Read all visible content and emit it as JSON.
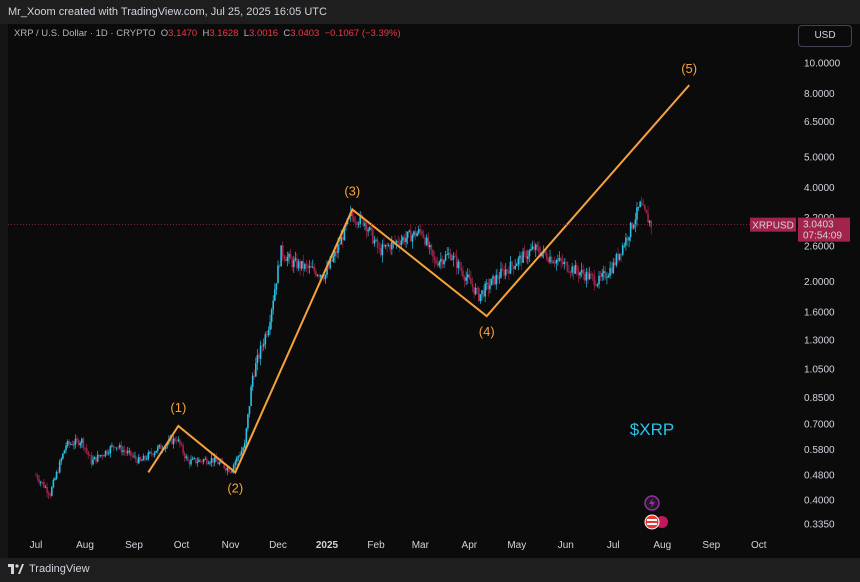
{
  "header": {
    "credit": "Mr_Xoom created with TradingView.com, Jul 25, 2025 16:05 UTC"
  },
  "symbol_line": {
    "title": "XRP / U.S. Dollar · 1D · CRYPTO",
    "open_label": "O",
    "open_value": "3.1470",
    "high_label": "H",
    "high_value": "3.1628",
    "low_label": "L",
    "low_value": "3.0016",
    "close_label": "C",
    "close_value": "3.0403",
    "change": "−0.1067 (−3.39%)"
  },
  "currency_button": "USD",
  "footer": {
    "brand": "TradingView"
  },
  "price_tag": {
    "symbol": "XRPUSD",
    "price": "3.0403",
    "countdown": "07:54:09"
  },
  "colors": {
    "up": "#2ac3e8",
    "down": "#a3244a",
    "wave": "#f7a23b",
    "tag_bg": "#a3244a",
    "background": "#0b0b0b",
    "symbol_text": "#2ac3e8"
  },
  "chart_data": {
    "type": "candlestick",
    "log_scale": true,
    "y_ticks": [
      "10.0000",
      "8.0000",
      "6.5000",
      "5.0000",
      "4.0000",
      "3.2000",
      "2.6000",
      "2.0000",
      "1.6000",
      "1.3000",
      "1.0500",
      "0.8500",
      "0.7000",
      "0.5800",
      "0.4800",
      "0.4000",
      "0.3350"
    ],
    "x_ticks": [
      "Jul",
      "Aug",
      "Sep",
      "Oct",
      "Nov",
      "Dec",
      "2025",
      "Feb",
      "Mar",
      "Apr",
      "May",
      "Jun",
      "Jul",
      "Aug",
      "Sep",
      "Oct"
    ],
    "price_path": [
      [
        "2024-07-01",
        0.48
      ],
      [
        "2024-07-10",
        0.42
      ],
      [
        "2024-07-20",
        0.6
      ],
      [
        "2024-07-30",
        0.62
      ],
      [
        "2024-08-05",
        0.53
      ],
      [
        "2024-08-20",
        0.6
      ],
      [
        "2024-09-05",
        0.53
      ],
      [
        "2024-09-15",
        0.58
      ],
      [
        "2024-09-28",
        0.63
      ],
      [
        "2024-10-05",
        0.53
      ],
      [
        "2024-10-20",
        0.54
      ],
      [
        "2024-11-01",
        0.5
      ],
      [
        "2024-11-10",
        0.6
      ],
      [
        "2024-11-15",
        1.0
      ],
      [
        "2024-11-25",
        1.45
      ],
      [
        "2024-12-03",
        2.5
      ],
      [
        "2024-12-10",
        2.3
      ],
      [
        "2024-12-20",
        2.2
      ],
      [
        "2024-12-31",
        2.1
      ],
      [
        "2025-01-07",
        2.5
      ],
      [
        "2025-01-16",
        3.25
      ],
      [
        "2025-01-25",
        3.1
      ],
      [
        "2025-02-03",
        2.5
      ],
      [
        "2025-02-15",
        2.7
      ],
      [
        "2025-03-02",
        2.9
      ],
      [
        "2025-03-10",
        2.3
      ],
      [
        "2025-03-20",
        2.45
      ],
      [
        "2025-04-07",
        1.8
      ],
      [
        "2025-04-20",
        2.1
      ],
      [
        "2025-05-12",
        2.55
      ],
      [
        "2025-05-25",
        2.35
      ],
      [
        "2025-06-05",
        2.2
      ],
      [
        "2025-06-22",
        2.0
      ],
      [
        "2025-07-01",
        2.25
      ],
      [
        "2025-07-10",
        2.8
      ],
      [
        "2025-07-18",
        3.5
      ],
      [
        "2025-07-25",
        3.04
      ]
    ],
    "elliott_wave": {
      "points": [
        {
          "date": "2024-09-10",
          "price": 0.49,
          "label": ""
        },
        {
          "date": "2024-09-29",
          "price": 0.69,
          "label": "(1)"
        },
        {
          "date": "2024-11-04",
          "price": 0.49,
          "label": "(2)"
        },
        {
          "date": "2025-01-17",
          "price": 3.4,
          "label": "(3)"
        },
        {
          "date": "2025-04-12",
          "price": 1.55,
          "label": "(4)"
        },
        {
          "date": "2025-08-18",
          "price": 8.5,
          "label": "(5)"
        }
      ]
    },
    "annotation": "$XRP"
  }
}
